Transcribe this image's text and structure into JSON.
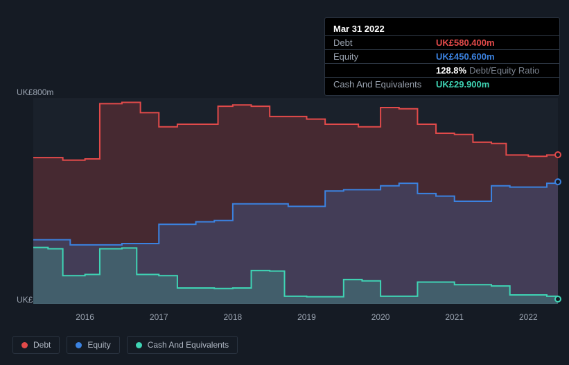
{
  "tooltip": {
    "date": "Mar 31 2022",
    "rows": [
      {
        "label": "Debt",
        "value": "UK£580.400m",
        "color": "#e24a4a"
      },
      {
        "label": "Equity",
        "value": "UK£450.600m",
        "color": "#3b82e0"
      },
      {
        "label": "",
        "ratio_num": "128.8%",
        "ratio_label": "Debt/Equity Ratio"
      },
      {
        "label": "Cash And Equivalents",
        "value": "UK£29.900m",
        "color": "#3fd4b4"
      }
    ]
  },
  "chart": {
    "type": "area",
    "xlim": [
      2015.3,
      2022.4
    ],
    "ylim": [
      0,
      800
    ],
    "y_ticks": [
      {
        "v": 800,
        "label": "UK£800m"
      },
      {
        "v": 0,
        "label": "UK£0"
      }
    ],
    "x_ticks": [
      2016,
      2017,
      2018,
      2019,
      2020,
      2021,
      2022
    ],
    "background": "#151b24",
    "plot_bg": "#1a212b",
    "gridline_color": "#222933",
    "series": [
      {
        "name": "Debt",
        "stroke": "#e24a4a",
        "fill": "#e24a4a",
        "fill_opacity": 0.22,
        "stroke_width": 2,
        "data": [
          [
            2015.3,
            570
          ],
          [
            2015.5,
            570
          ],
          [
            2015.7,
            560
          ],
          [
            2016.0,
            565
          ],
          [
            2016.2,
            780
          ],
          [
            2016.5,
            785
          ],
          [
            2016.75,
            745
          ],
          [
            2017.0,
            690
          ],
          [
            2017.25,
            700
          ],
          [
            2017.5,
            700
          ],
          [
            2017.8,
            770
          ],
          [
            2018.0,
            775
          ],
          [
            2018.25,
            770
          ],
          [
            2018.5,
            730
          ],
          [
            2018.75,
            730
          ],
          [
            2019.0,
            720
          ],
          [
            2019.25,
            700
          ],
          [
            2019.5,
            700
          ],
          [
            2019.7,
            690
          ],
          [
            2020.0,
            765
          ],
          [
            2020.25,
            760
          ],
          [
            2020.5,
            700
          ],
          [
            2020.75,
            665
          ],
          [
            2021.0,
            660
          ],
          [
            2021.25,
            630
          ],
          [
            2021.5,
            625
          ],
          [
            2021.7,
            580
          ],
          [
            2022.0,
            575
          ],
          [
            2022.25,
            580
          ],
          [
            2022.4,
            580
          ]
        ]
      },
      {
        "name": "Equity",
        "stroke": "#3b82e0",
        "fill": "#3b82e0",
        "fill_opacity": 0.22,
        "stroke_width": 2,
        "data": [
          [
            2015.3,
            250
          ],
          [
            2015.5,
            250
          ],
          [
            2015.8,
            230
          ],
          [
            2016.0,
            230
          ],
          [
            2016.25,
            230
          ],
          [
            2016.5,
            235
          ],
          [
            2016.75,
            235
          ],
          [
            2017.0,
            310
          ],
          [
            2017.25,
            310
          ],
          [
            2017.5,
            320
          ],
          [
            2017.75,
            325
          ],
          [
            2018.0,
            390
          ],
          [
            2018.25,
            390
          ],
          [
            2018.5,
            390
          ],
          [
            2018.75,
            380
          ],
          [
            2019.0,
            380
          ],
          [
            2019.25,
            440
          ],
          [
            2019.5,
            445
          ],
          [
            2019.75,
            445
          ],
          [
            2020.0,
            460
          ],
          [
            2020.25,
            470
          ],
          [
            2020.5,
            430
          ],
          [
            2020.75,
            420
          ],
          [
            2021.0,
            400
          ],
          [
            2021.25,
            400
          ],
          [
            2021.5,
            460
          ],
          [
            2021.75,
            455
          ],
          [
            2022.0,
            455
          ],
          [
            2022.25,
            470
          ],
          [
            2022.4,
            475
          ]
        ]
      },
      {
        "name": "Cash And Equivalents",
        "stroke": "#3fd4b4",
        "fill": "#3fd4b4",
        "fill_opacity": 0.22,
        "stroke_width": 2,
        "data": [
          [
            2015.3,
            220
          ],
          [
            2015.5,
            215
          ],
          [
            2015.7,
            110
          ],
          [
            2016.0,
            115
          ],
          [
            2016.2,
            215
          ],
          [
            2016.5,
            218
          ],
          [
            2016.7,
            115
          ],
          [
            2017.0,
            110
          ],
          [
            2017.25,
            62
          ],
          [
            2017.5,
            62
          ],
          [
            2017.75,
            60
          ],
          [
            2018.0,
            62
          ],
          [
            2018.25,
            130
          ],
          [
            2018.5,
            128
          ],
          [
            2018.7,
            30
          ],
          [
            2019.0,
            28
          ],
          [
            2019.25,
            28
          ],
          [
            2019.5,
            95
          ],
          [
            2019.75,
            90
          ],
          [
            2020.0,
            30
          ],
          [
            2020.25,
            30
          ],
          [
            2020.5,
            85
          ],
          [
            2020.75,
            85
          ],
          [
            2021.0,
            75
          ],
          [
            2021.25,
            75
          ],
          [
            2021.5,
            70
          ],
          [
            2021.75,
            35
          ],
          [
            2022.0,
            35
          ],
          [
            2022.25,
            30
          ],
          [
            2022.4,
            20
          ]
        ]
      }
    ]
  },
  "legend": [
    {
      "label": "Debt",
      "color": "#e24a4a"
    },
    {
      "label": "Equity",
      "color": "#3b82e0"
    },
    {
      "label": "Cash And Equivalents",
      "color": "#3fd4b4"
    }
  ]
}
